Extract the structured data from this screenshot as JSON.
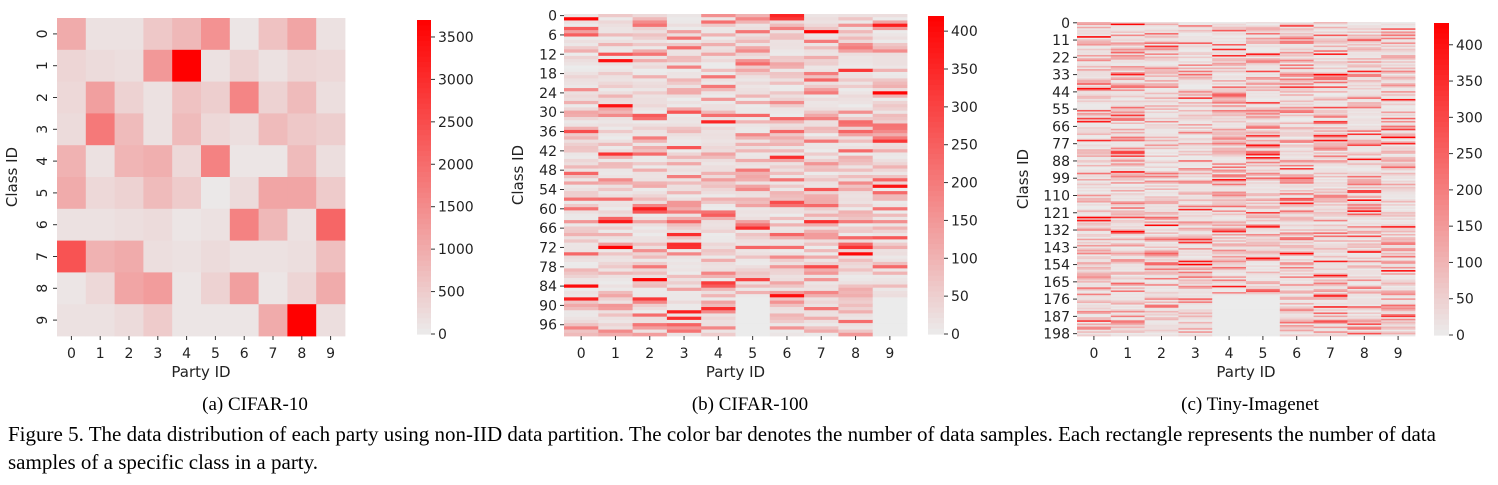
{
  "figure": {
    "caption": "Figure 5. The data distribution of each party using non-IID data partition. The color bar denotes the number of data samples. Each rectangle represents the number of data samples of a specific class in a party."
  },
  "chart_data": [
    {
      "type": "heatmap",
      "subcaption": "(a) CIFAR-10",
      "xlabel": "Party ID",
      "ylabel": "Class ID",
      "x_ticks": [
        "0",
        "1",
        "2",
        "3",
        "4",
        "5",
        "6",
        "7",
        "8",
        "9"
      ],
      "y_ticks": [
        "0",
        "1",
        "2",
        "3",
        "4",
        "5",
        "6",
        "7",
        "8",
        "9"
      ],
      "colorbar": {
        "min": 0,
        "max": 3700,
        "ticks": [
          0,
          500,
          1000,
          1500,
          2000,
          2500,
          3000,
          3500
        ]
      },
      "values": [
        [
          1000,
          150,
          150,
          550,
          800,
          1400,
          100,
          650,
          1100,
          150
        ],
        [
          350,
          250,
          200,
          1300,
          3700,
          150,
          400,
          150,
          350,
          300
        ],
        [
          300,
          1200,
          400,
          150,
          650,
          450,
          1600,
          400,
          750,
          200
        ],
        [
          250,
          1800,
          750,
          150,
          750,
          300,
          200,
          750,
          550,
          450
        ],
        [
          900,
          150,
          850,
          950,
          300,
          1650,
          100,
          100,
          750,
          200
        ],
        [
          1000,
          300,
          400,
          750,
          500,
          50,
          250,
          1100,
          1100,
          500
        ],
        [
          150,
          150,
          200,
          250,
          100,
          150,
          1650,
          800,
          150,
          2100
        ],
        [
          2400,
          900,
          1000,
          200,
          150,
          250,
          150,
          150,
          200,
          700
        ],
        [
          100,
          300,
          1100,
          1250,
          100,
          400,
          1200,
          100,
          350,
          1000
        ],
        [
          150,
          150,
          250,
          500,
          100,
          100,
          100,
          1000,
          3700,
          200
        ]
      ]
    },
    {
      "type": "heatmap",
      "subcaption": "(b) CIFAR-100",
      "xlabel": "Party ID",
      "ylabel": "Class ID",
      "x_ticks": [
        "0",
        "1",
        "2",
        "3",
        "4",
        "5",
        "6",
        "7",
        "8",
        "9"
      ],
      "y_ticks": [
        "0",
        "6",
        "12",
        "18",
        "24",
        "30",
        "36",
        "42",
        "48",
        "54",
        "60",
        "66",
        "72",
        "78",
        "84",
        "90",
        "96"
      ],
      "num_classes": 100,
      "colorbar": {
        "min": 0,
        "max": 420,
        "ticks": [
          0,
          50,
          100,
          150,
          200,
          250,
          300,
          350,
          400
        ]
      },
      "values_note": "Sparse non-IID distribution: most cells between 0 and 150, scattered cells up to about 420; parties 5 and 9 have no samples for the last classes."
    },
    {
      "type": "heatmap",
      "subcaption": "(c) Tiny-Imagenet",
      "xlabel": "Party ID",
      "ylabel": "Class ID",
      "x_ticks": [
        "0",
        "1",
        "2",
        "3",
        "4",
        "5",
        "6",
        "7",
        "8",
        "9"
      ],
      "y_ticks": [
        "0",
        "11",
        "22",
        "33",
        "44",
        "55",
        "66",
        "77",
        "88",
        "99",
        "110",
        "121",
        "132",
        "143",
        "154",
        "165",
        "176",
        "187",
        "198"
      ],
      "num_classes": 200,
      "colorbar": {
        "min": 0,
        "max": 430,
        "ticks": [
          0,
          50,
          100,
          150,
          200,
          250,
          300,
          350,
          400
        ]
      },
      "values_note": "Sparse non-IID distribution: most cells between 0 and 150, scattered cells up to about 430; parties 4 and 5 have no samples for the last classes."
    }
  ]
}
